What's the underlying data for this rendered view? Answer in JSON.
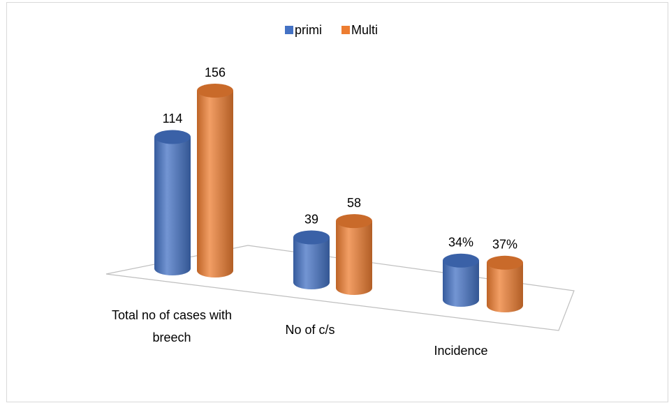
{
  "chart_data": {
    "type": "cylinder_bar",
    "categories": [
      "Total no of cases with breech",
      "No of c/s",
      "Incidence"
    ],
    "series": [
      {
        "name": "primi",
        "color": "#4472c4",
        "values": [
          114,
          39,
          34
        ],
        "value_labels": [
          "114",
          "39",
          "34%"
        ]
      },
      {
        "name": "Multi",
        "color": "#ed7d31",
        "values": [
          156,
          58,
          37
        ],
        "value_labels": [
          "156",
          "58",
          "37%"
        ]
      }
    ],
    "legend": "top"
  }
}
